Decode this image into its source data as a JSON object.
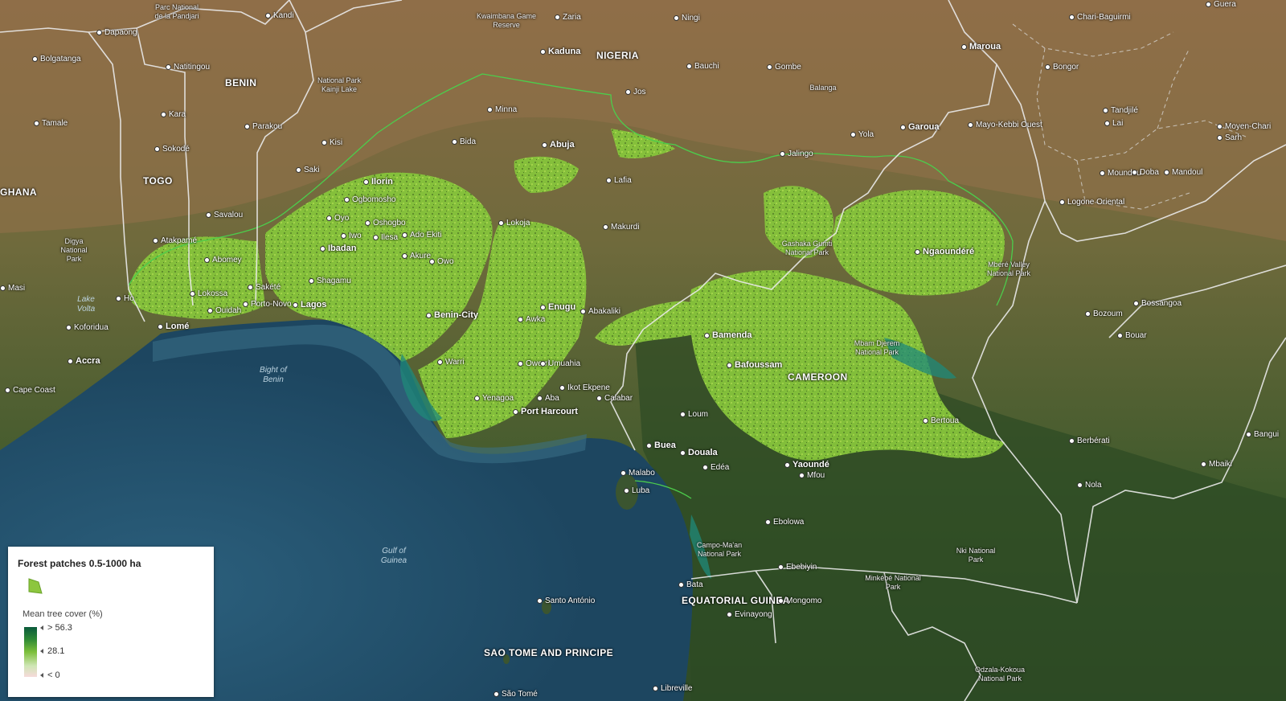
{
  "map": {
    "colors": {
      "ocean": "#1f4a66",
      "land_dry": "#8a6a45",
      "land_green": "#3d5228",
      "forest_patch": "#8dcc3a",
      "boundary": "#e8e8e8",
      "roi_outline": "#4cc94c"
    },
    "countries": [
      {
        "label": "NIGERIA"
      },
      {
        "label": "BENIN"
      },
      {
        "label": "TOGO"
      },
      {
        "label": "GHANA"
      },
      {
        "label": "CAMEROON"
      },
      {
        "label": "EQUATORIAL GUINEA"
      },
      {
        "label": "SAO TOME AND PRINCIPE"
      }
    ],
    "cities": [
      {
        "label": "Bolgatanga"
      },
      {
        "label": "Dapaong"
      },
      {
        "label": "Kandi"
      },
      {
        "label": "Zaria"
      },
      {
        "label": "Ningi"
      },
      {
        "label": "Kaduna"
      },
      {
        "label": "Maroua"
      },
      {
        "label": "Natitingou"
      },
      {
        "label": "Bauchi"
      },
      {
        "label": "Gombe"
      },
      {
        "label": "Jos"
      },
      {
        "label": "Kara"
      },
      {
        "label": "Parakou"
      },
      {
        "label": "Minna"
      },
      {
        "label": "Tamale"
      },
      {
        "label": "Kisi"
      },
      {
        "label": "Bida"
      },
      {
        "label": "Abuja"
      },
      {
        "label": "Yola"
      },
      {
        "label": "Garoua"
      },
      {
        "label": "Sokodé"
      },
      {
        "label": "Saki"
      },
      {
        "label": "Jalingo"
      },
      {
        "label": "Ilorin"
      },
      {
        "label": "Lafia"
      },
      {
        "label": "Ogbomosho"
      },
      {
        "label": "Savalou"
      },
      {
        "label": "Oyo"
      },
      {
        "label": "Oshogbo"
      },
      {
        "label": "Iwo"
      },
      {
        "label": "Ilesa"
      },
      {
        "label": "Ado Ekiti"
      },
      {
        "label": "Lokoja"
      },
      {
        "label": "Makurdi"
      },
      {
        "label": "Atakpamé"
      },
      {
        "label": "Ibadan"
      },
      {
        "label": "Akure"
      },
      {
        "label": "Owo"
      },
      {
        "label": "Ngaoundéré"
      },
      {
        "label": "Abomey"
      },
      {
        "label": "Shagamu"
      },
      {
        "label": "Lokossa"
      },
      {
        "label": "Sakété"
      },
      {
        "label": "Porto-Novo"
      },
      {
        "label": "Lagos"
      },
      {
        "label": "Ouidah"
      },
      {
        "label": "Benin-City"
      },
      {
        "label": "Enugu"
      },
      {
        "label": "Abakaliki"
      },
      {
        "label": "Awka"
      },
      {
        "label": "Lomé"
      },
      {
        "label": "Koforidua"
      },
      {
        "label": "Ho"
      },
      {
        "label": "Bamenda"
      },
      {
        "label": "Bozoum"
      },
      {
        "label": "Bossangoa"
      },
      {
        "label": "Accra"
      },
      {
        "label": "Warri"
      },
      {
        "label": "Owerri"
      },
      {
        "label": "Umuahia"
      },
      {
        "label": "Bafoussam"
      },
      {
        "label": "Bouar"
      },
      {
        "label": "Ikot Ekpene"
      },
      {
        "label": "Aba"
      },
      {
        "label": "Cape Coast"
      },
      {
        "label": "Yenagoa"
      },
      {
        "label": "Calabar"
      },
      {
        "label": "Port Harcourt"
      },
      {
        "label": "Loum"
      },
      {
        "label": "Bertoua"
      },
      {
        "label": "Bangui"
      },
      {
        "label": "Berbérati"
      },
      {
        "label": "Buea"
      },
      {
        "label": "Douala"
      },
      {
        "label": "Yaoundé"
      },
      {
        "label": "Mfou"
      },
      {
        "label": "Edéa"
      },
      {
        "label": "Mbaiki"
      },
      {
        "label": "Malabo"
      },
      {
        "label": "Luba"
      },
      {
        "label": "Nola"
      },
      {
        "label": "Ebolowa"
      },
      {
        "label": "Ebebiyin"
      },
      {
        "label": "Bata"
      },
      {
        "label": "Mongomo"
      },
      {
        "label": "Evinayong"
      },
      {
        "label": "Santo António"
      },
      {
        "label": "Libreville"
      },
      {
        "label": "São Tomé"
      },
      {
        "label": "Chari-Baguirmi"
      },
      {
        "label": "Guera"
      },
      {
        "label": "Bongor"
      },
      {
        "label": "Tandjilé"
      },
      {
        "label": "Lai"
      },
      {
        "label": "Mayo-Kebbi Ouest"
      },
      {
        "label": "Moyen-Chari"
      },
      {
        "label": "Sarh"
      },
      {
        "label": "Moundou"
      },
      {
        "label": "Doba"
      },
      {
        "label": "Mandoul"
      },
      {
        "label": "Logone Oriental"
      },
      {
        "label": "Masi"
      }
    ],
    "parks": [
      {
        "label": "Parc National de la Pandjari"
      },
      {
        "label": "Kwaimbana Game Reserve"
      },
      {
        "label": "National Park Kainji Lake"
      },
      {
        "label": "Digya National Park"
      },
      {
        "label": "Gashaka Gumti National Park"
      },
      {
        "label": "Mbéré Valley National Park"
      },
      {
        "label": "Mbam Djerem National Park"
      },
      {
        "label": "Campo-Ma'an National Park"
      },
      {
        "label": "Nki National Park"
      },
      {
        "label": "Minkébé National Park"
      },
      {
        "label": "Odzala-Kokoua National Park"
      },
      {
        "label": "Balanga"
      }
    ],
    "water": [
      {
        "label": "Bight of Benin"
      },
      {
        "label": "Gulf of Guinea"
      },
      {
        "label": "Lake Volta"
      }
    ]
  },
  "legend": {
    "title": "Forest patches 0.5-1000 ha",
    "swatch_color": "#8dc63f",
    "subtitle": "Mean tree cover (%)",
    "ticks": [
      "> 56.3",
      "28.1",
      "< 0"
    ],
    "ramp_colors": [
      "#0a5a3c",
      "#7cbf3a",
      "#f6dada"
    ]
  }
}
